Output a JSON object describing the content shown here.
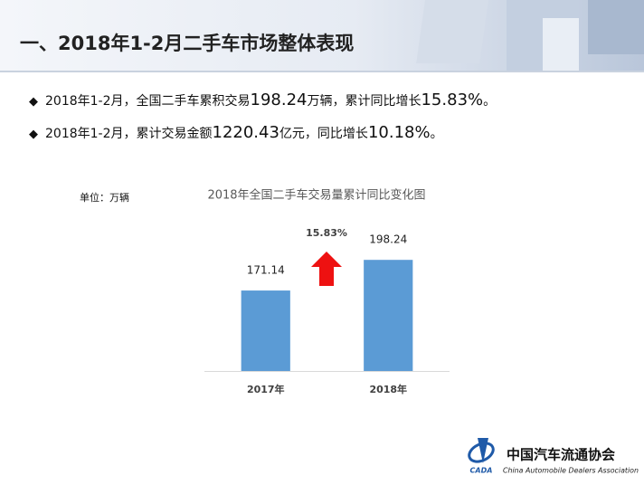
{
  "header": {
    "title": "一、2018年1-2月二手车市场整体表现"
  },
  "bullets": [
    [
      "2018年1-2月，全国二手车累积交易",
      "198.24",
      "万辆，累计同比增长",
      "15.83%",
      "。"
    ],
    [
      "2018年1-2月，累计交易金额",
      "1220.43",
      "亿元，同比增长",
      "10.18%",
      "。"
    ]
  ],
  "chart_data": {
    "type": "bar",
    "title": "2018年全国二手车交易量累计同比变化图",
    "unit_label": "单位：万辆",
    "categories": [
      "2017年",
      "2018年"
    ],
    "values": [
      171.14,
      198.24
    ],
    "color": "#5b9bd5",
    "ylim": [
      100,
      220
    ],
    "annotation": "15.83%"
  },
  "logo": {
    "name": "中国汽车流通协会",
    "abbr": "CADA",
    "english": "China Automobile Dealers Association"
  }
}
